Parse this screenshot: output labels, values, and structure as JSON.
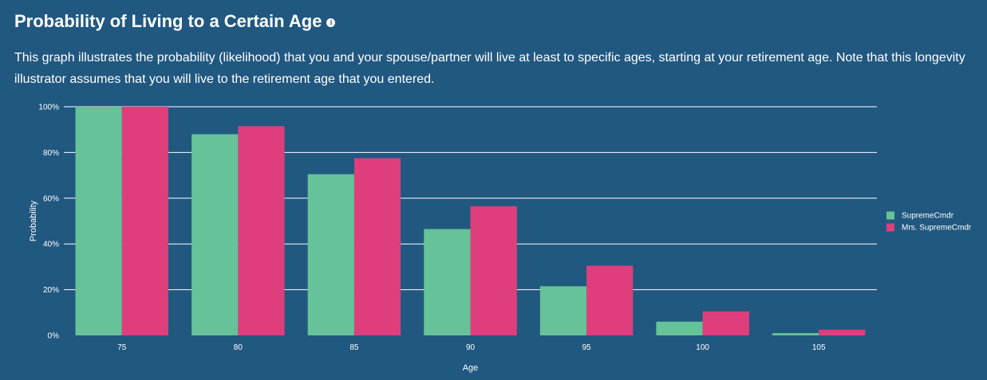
{
  "title": "Probability of Living to a Certain Age",
  "description": "This graph illustrates the probability (likelihood) that you and your spouse/partner will live at least to specific ages, starting at your retirement age. Note that this longevity illustrator assumes that you will live to the retirement age that you entered.",
  "colors": {
    "background": "#215880",
    "series1": "#66c298",
    "series2": "#de3f7c",
    "grid": "#ffffff"
  },
  "chart_data": {
    "type": "bar",
    "xlabel": "Age",
    "ylabel": "Probability",
    "categories": [
      "75",
      "80",
      "85",
      "90",
      "95",
      "100",
      "105"
    ],
    "y_ticks": [
      "0%",
      "20%",
      "40%",
      "60%",
      "80%",
      "100%"
    ],
    "ylim": [
      0,
      100
    ],
    "series": [
      {
        "name": "SupremeCmdr",
        "values": [
          100,
          88,
          70.5,
          46.5,
          21.5,
          6,
          1
        ]
      },
      {
        "name": "Mrs. SupremeCmdr",
        "values": [
          100,
          91.5,
          77.5,
          56.5,
          30.5,
          10.5,
          2.5
        ]
      }
    ],
    "legend_position": "right",
    "grid": true
  }
}
